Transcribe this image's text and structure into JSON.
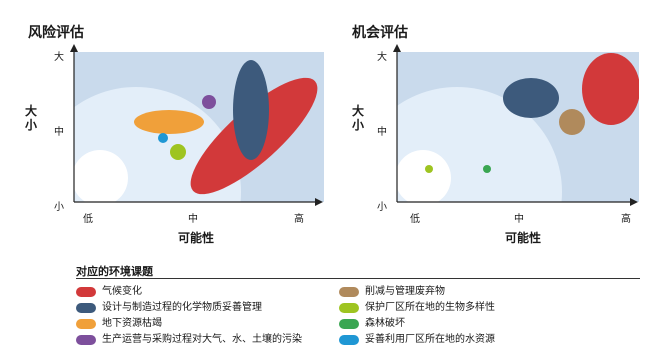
{
  "panels": [
    {
      "title": "风险评估",
      "y_ticks": [
        "大",
        "中",
        "小"
      ],
      "y_label": "大小",
      "x_ticks": [
        "低",
        "中",
        "高"
      ],
      "x_label": "可能性"
    },
    {
      "title": "机会评估",
      "y_ticks": [
        "大",
        "中",
        "小"
      ],
      "y_label": "大小",
      "x_ticks": [
        "低",
        "中",
        "高"
      ],
      "x_label": "可能性"
    }
  ],
  "legend": {
    "title": "对应的环境课题",
    "items": [
      {
        "label": "气候变化",
        "color": "#d2393a"
      },
      {
        "label": "设计与制造过程的化学物质妥善管理",
        "color": "#3d5a7c"
      },
      {
        "label": "地下资源枯竭",
        "color": "#f0a03a"
      },
      {
        "label": "生产运营与采购过程对大气、水、土壤的污染",
        "color": "#7d4f9c"
      },
      {
        "label": "削减与管理废弃物",
        "color": "#b08a5c"
      },
      {
        "label": "保护厂区所在地的生物多样性",
        "color": "#9ec421"
      },
      {
        "label": "森林破坏",
        "color": "#3aa652"
      },
      {
        "label": "妥善利用厂区所在地的水资源",
        "color": "#1f97d4"
      }
    ]
  }
}
